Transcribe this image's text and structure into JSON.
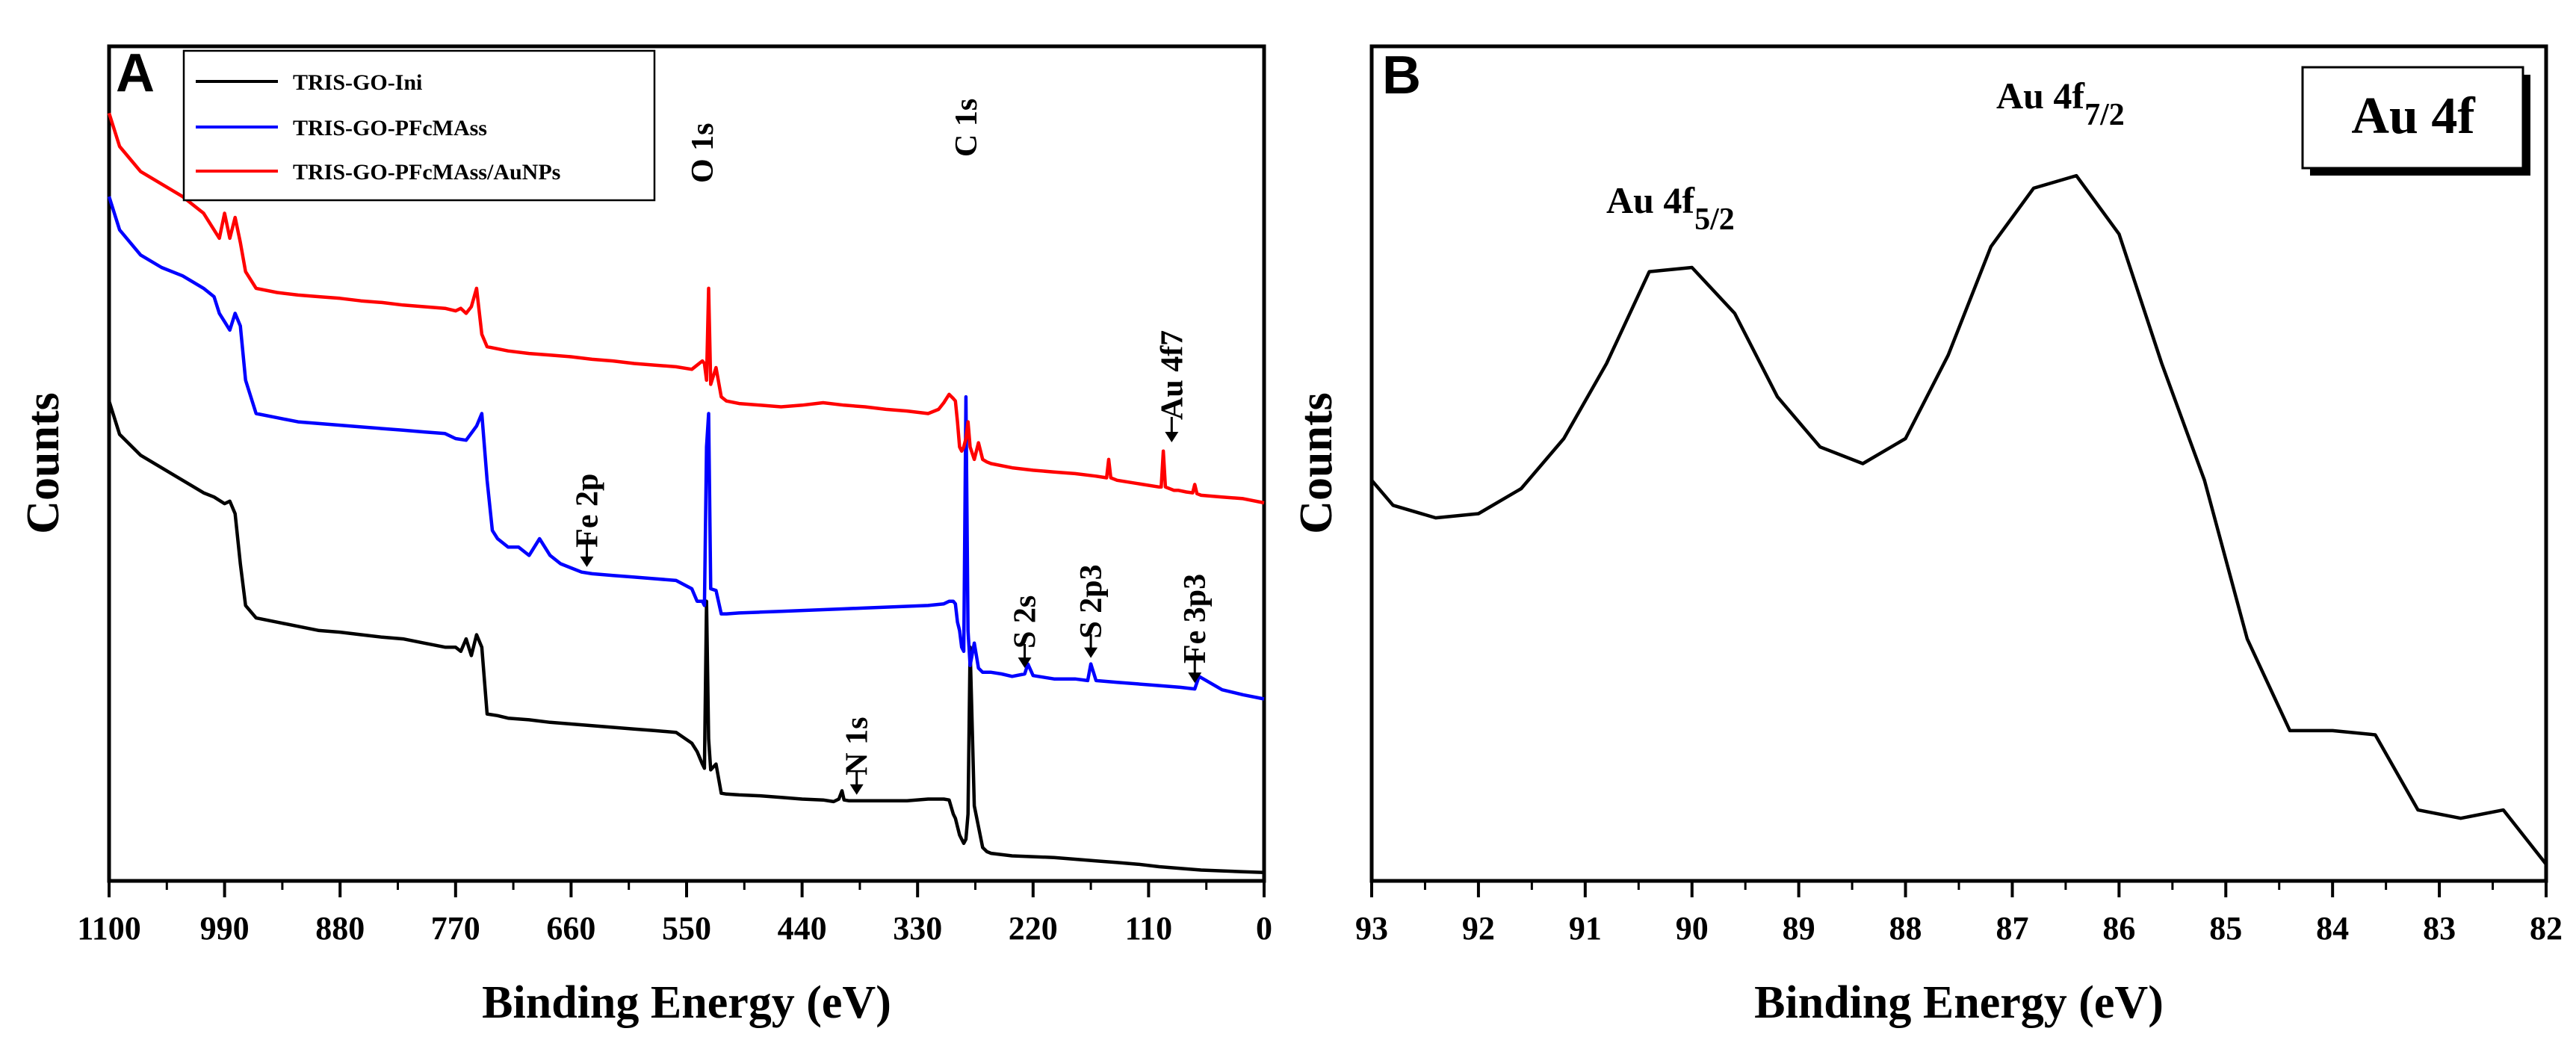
{
  "chart_data": [
    {
      "panel": "A",
      "type": "line",
      "title": "",
      "xlabel": "Binding Energy (eV)",
      "ylabel": "Counts",
      "xlim": [
        1100,
        0
      ],
      "ylim": [
        0,
        100
      ],
      "xticks": [
        "1100",
        "990",
        "880",
        "770",
        "660",
        "550",
        "440",
        "330",
        "220",
        "110",
        "0"
      ],
      "legend_position": "top-left",
      "series": [
        {
          "name": "TRIS-GO-Ini",
          "color": "#000000",
          "x": [
            1100,
            1090,
            1070,
            1050,
            1030,
            1010,
            1000,
            990,
            985,
            980,
            975,
            970,
            960,
            940,
            920,
            900,
            880,
            860,
            840,
            820,
            800,
            780,
            770,
            765,
            760,
            755,
            750,
            745,
            740,
            730,
            720,
            700,
            680,
            660,
            640,
            620,
            600,
            580,
            560,
            545,
            540,
            535,
            533,
            531,
            529,
            527,
            522,
            517,
            512,
            500,
            480,
            460,
            440,
            420,
            410,
            405,
            402,
            400,
            395,
            380,
            360,
            340,
            320,
            305,
            300,
            296,
            294,
            292,
            290,
            288,
            286,
            284,
            282,
            280,
            276,
            272,
            268,
            264,
            260,
            240,
            220,
            200,
            180,
            160,
            140,
            120,
            100,
            80,
            60,
            40,
            20,
            0
          ],
          "y": [
            57.5,
            53.5,
            51,
            49.5,
            48,
            46.5,
            46,
            45.2,
            45.5,
            44,
            38,
            33,
            31.5,
            31,
            30.5,
            30,
            29.8,
            29.5,
            29.2,
            29,
            28.5,
            28,
            28,
            27.5,
            29,
            27,
            29.5,
            28,
            20,
            19.8,
            19.5,
            19.3,
            19,
            18.8,
            18.6,
            18.4,
            18.2,
            18,
            17.8,
            16.5,
            15.5,
            14,
            13.5,
            33.5,
            17,
            13.3,
            14,
            10.5,
            10.4,
            10.3,
            10.2,
            10,
            9.8,
            9.7,
            9.5,
            9.8,
            10.8,
            9.7,
            9.6,
            9.6,
            9.6,
            9.6,
            9.8,
            9.8,
            9.7,
            8,
            7.5,
            6.5,
            5.5,
            5,
            4.5,
            5,
            8,
            28,
            9,
            6.5,
            4,
            3.5,
            3.3,
            3,
            2.9,
            2.8,
            2.6,
            2.4,
            2.2,
            2,
            1.7,
            1.5,
            1.3,
            1.2,
            1.1,
            1
          ],
          "annotations": [
            {
              "x": 388,
              "label": "N 1s"
            }
          ]
        },
        {
          "name": "TRIS-GO-PFcMAss",
          "color": "#0000ff",
          "x": [
            1100,
            1090,
            1070,
            1050,
            1030,
            1010,
            1000,
            995,
            990,
            985,
            980,
            975,
            970,
            960,
            940,
            920,
            900,
            880,
            860,
            840,
            820,
            800,
            780,
            770,
            760,
            750,
            745,
            740,
            735,
            730,
            720,
            710,
            700,
            690,
            680,
            670,
            660,
            650,
            640,
            620,
            600,
            580,
            560,
            545,
            540,
            535,
            533,
            531,
            529,
            527,
            522,
            517,
            512,
            500,
            480,
            460,
            440,
            420,
            400,
            380,
            360,
            340,
            320,
            305,
            300,
            296,
            294,
            292,
            290,
            288,
            286,
            284,
            282,
            280,
            276,
            272,
            268,
            264,
            260,
            250,
            240,
            228,
            225,
            220,
            200,
            180,
            168,
            165,
            160,
            140,
            120,
            100,
            80,
            66,
            62,
            40,
            20,
            0
          ],
          "y": [
            82,
            78,
            75,
            73.5,
            72.5,
            71,
            70,
            68,
            67,
            66,
            68,
            66.5,
            60,
            56,
            55.5,
            55,
            54.8,
            54.6,
            54.4,
            54.2,
            54,
            53.8,
            53.6,
            53,
            52.8,
            54.5,
            56,
            48,
            42,
            41,
            40,
            40,
            39,
            41,
            39,
            38,
            37.5,
            37,
            36.8,
            36.6,
            36.4,
            36.2,
            36,
            35,
            33.5,
            33.5,
            33,
            52,
            56,
            35,
            34.8,
            32,
            32,
            32.1,
            32.2,
            32.3,
            32.4,
            32.5,
            32.6,
            32.7,
            32.8,
            32.9,
            33,
            33.2,
            33.5,
            33.5,
            33.2,
            31,
            30,
            28,
            27.5,
            58,
            30,
            25.8,
            28.5,
            25.5,
            25,
            25,
            25,
            24.8,
            24.5,
            24.8,
            26,
            24.6,
            24.2,
            24.2,
            24,
            26,
            24,
            23.8,
            23.6,
            23.4,
            23.2,
            23,
            24.5,
            22.9,
            22.3,
            21.8
          ],
          "annotations": [
            {
              "x": 645,
              "label": "Fe 2p"
            },
            {
              "x": 228,
              "label": "S 2s"
            },
            {
              "x": 165,
              "label": "S 2p3"
            },
            {
              "x": 66,
              "label": "Fe 3p3"
            }
          ]
        },
        {
          "name": "TRIS-GO-PFcMAss/AuNPs",
          "color": "#ff0000",
          "x": [
            1100,
            1090,
            1070,
            1050,
            1030,
            1010,
            1000,
            995,
            990,
            985,
            980,
            975,
            970,
            960,
            940,
            920,
            900,
            880,
            860,
            840,
            820,
            800,
            780,
            770,
            765,
            760,
            755,
            750,
            745,
            740,
            720,
            700,
            680,
            660,
            640,
            620,
            600,
            580,
            560,
            545,
            540,
            535,
            533,
            531,
            529,
            527,
            522,
            517,
            512,
            500,
            480,
            460,
            440,
            420,
            400,
            380,
            360,
            340,
            320,
            310,
            305,
            300,
            296,
            294,
            292,
            290,
            288,
            286,
            284,
            282,
            280,
            276,
            272,
            268,
            264,
            260,
            240,
            220,
            200,
            180,
            160,
            150,
            148,
            146,
            140,
            120,
            100,
            98,
            96,
            94,
            86,
            82,
            74,
            68,
            66,
            64,
            60,
            40,
            20,
            0
          ],
          "y": [
            92,
            88,
            85,
            83.5,
            82,
            80,
            78,
            77,
            80,
            77,
            79.5,
            76.5,
            73,
            71,
            70.5,
            70.2,
            70,
            69.8,
            69.5,
            69.3,
            69,
            68.8,
            68.6,
            68.3,
            68.6,
            68,
            68.8,
            71,
            65.5,
            64,
            63.5,
            63.2,
            63,
            62.8,
            62.5,
            62.3,
            62,
            61.8,
            61.6,
            61.3,
            61.8,
            62.3,
            62,
            60,
            71,
            59.5,
            61.5,
            58,
            57.5,
            57.2,
            57,
            56.8,
            57,
            57.3,
            57,
            56.8,
            56.5,
            56.3,
            56,
            56.5,
            57.3,
            58.3,
            57.8,
            57.5,
            55,
            52,
            51.5,
            52,
            53,
            55,
            52,
            50.5,
            52.5,
            50.5,
            50.2,
            50,
            49.5,
            49.2,
            49,
            48.8,
            48.5,
            48.3,
            50.5,
            48.3,
            48,
            47.6,
            47.2,
            47.2,
            51.5,
            47.2,
            46.8,
            46.8,
            46.6,
            46.5,
            47.5,
            46.4,
            46.2,
            46,
            45.8,
            45.3
          ]
        }
      ],
      "peak_labels": [
        {
          "x": 535,
          "label": "O 1s"
        },
        {
          "x": 284,
          "label": "C 1s"
        },
        {
          "x": 88,
          "label": "Au 4f7"
        }
      ]
    },
    {
      "panel": "B",
      "type": "line",
      "title": "Au 4f",
      "xlabel": "Binding Energy (eV)",
      "ylabel": "Counts",
      "xlim": [
        93,
        82
      ],
      "ylim": [
        0,
        100
      ],
      "xticks": [
        "93",
        "92",
        "91",
        "90",
        "89",
        "88",
        "87",
        "86",
        "85",
        "84",
        "83",
        "82"
      ],
      "series": [
        {
          "name": "Au 4f",
          "color": "#000000",
          "x": [
            93.0,
            92.8,
            92.4,
            92.0,
            91.6,
            91.2,
            90.8,
            90.4,
            90.0,
            89.6,
            89.2,
            88.8,
            88.4,
            88.0,
            87.6,
            87.2,
            86.8,
            86.4,
            86.0,
            85.6,
            85.2,
            84.8,
            84.4,
            84.0,
            83.6,
            83.2,
            82.8,
            82.4,
            82.0
          ],
          "y": [
            48,
            45,
            43.5,
            44,
            47,
            53,
            62,
            73,
            73.5,
            68,
            58,
            52,
            50,
            53,
            63,
            76,
            83,
            84.5,
            77.5,
            62,
            48,
            29,
            18,
            18,
            17.5,
            8.5,
            7.5,
            8.5,
            2
          ]
        }
      ],
      "peak_labels": [
        {
          "label_main": "Au 4f",
          "label_sub": "5/2"
        },
        {
          "label_main": "Au 4f",
          "label_sub": "7/2"
        }
      ]
    }
  ],
  "panel_labels": {
    "a": "A",
    "b": "B"
  }
}
